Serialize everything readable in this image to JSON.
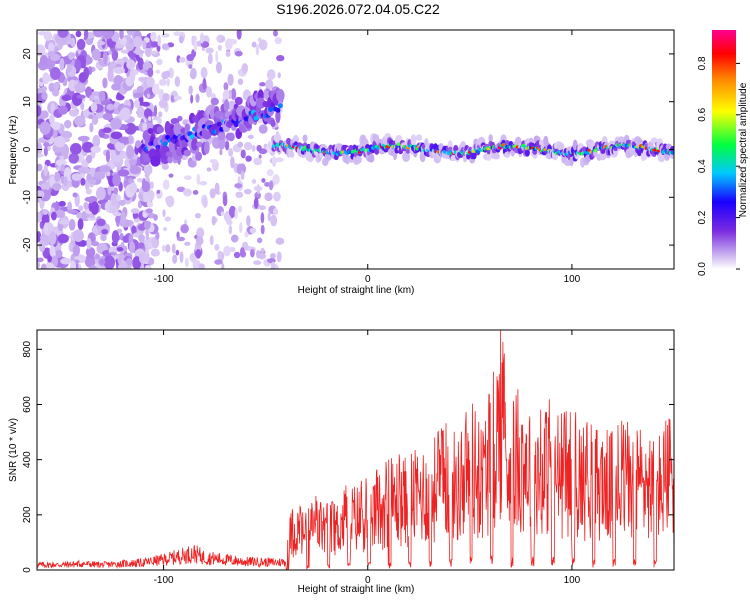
{
  "title": "S196.2026.072.04.05.C22",
  "chart_data": [
    {
      "type": "heatmap",
      "name": "spectrogram",
      "xlabel": "Height of straight line (km)",
      "ylabel": "Frequency (Hz)",
      "xlim": [
        -162,
        150
      ],
      "ylim": [
        -25,
        25
      ],
      "xticks": [
        -100,
        0,
        100
      ],
      "yticks": [
        -20,
        -10,
        0,
        10,
        20
      ],
      "colorbar": {
        "label": "Normalized spectral amplitude",
        "range": [
          0,
          0.93
        ],
        "ticks": [
          0.0,
          0.2,
          0.4,
          0.6,
          0.8
        ],
        "colormap": [
          "#ffffff",
          "#c9b0f0",
          "#7a2be0",
          "#1a00ff",
          "#00c8ff",
          "#00ff40",
          "#ffff00",
          "#ff8000",
          "#ff0000",
          "#ff0090"
        ]
      },
      "ridge": {
        "description": "narrow band near 0 Hz for heights above -40 km, rising branch from about 0 Hz at -110 km to about 9 Hz at -42 km",
        "start_height_km": -110,
        "branch_peak": {
          "height_km": -42,
          "frequency_hz": 9
        },
        "band_center_hz": 0
      }
    },
    {
      "type": "line",
      "name": "snr",
      "xlabel": "Height of straight line (km)",
      "ylabel": "SNR (10 * v/v)",
      "xlim": [
        -162,
        150
      ],
      "ylim": [
        0,
        870
      ],
      "xticks": [
        -100,
        0,
        100
      ],
      "yticks": [
        0,
        200,
        400,
        600,
        800
      ],
      "color": "#ee2222",
      "x": [
        -162,
        -150,
        -140,
        -130,
        -120,
        -110,
        -100,
        -90,
        -85,
        -80,
        -75,
        -70,
        -65,
        -60,
        -55,
        -50,
        -45,
        -40,
        -38,
        -35,
        -30,
        -25,
        -20,
        -15,
        -10,
        -5,
        0,
        5,
        10,
        15,
        20,
        25,
        30,
        35,
        40,
        45,
        50,
        55,
        60,
        65,
        70,
        75,
        80,
        85,
        90,
        95,
        100,
        105,
        110,
        115,
        120,
        125,
        130,
        135,
        140,
        145,
        150
      ],
      "values": [
        25,
        25,
        30,
        25,
        30,
        35,
        50,
        70,
        80,
        60,
        55,
        50,
        45,
        40,
        40,
        38,
        36,
        40,
        200,
        230,
        200,
        260,
        230,
        240,
        300,
        300,
        320,
        350,
        380,
        400,
        390,
        430,
        450,
        480,
        520,
        450,
        600,
        500,
        620,
        860,
        560,
        650,
        600,
        550,
        600,
        540,
        560,
        520,
        500,
        500,
        480,
        520,
        500,
        520,
        460,
        500,
        580
      ]
    }
  ]
}
